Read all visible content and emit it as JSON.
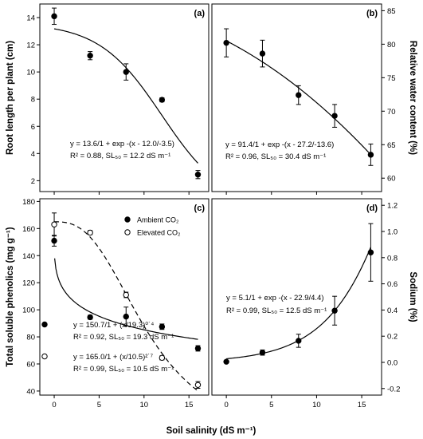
{
  "figure": {
    "x_axis_title": "Soil salinity (dS m⁻¹)",
    "x_ticks": [
      0,
      5,
      10,
      15
    ]
  },
  "chart_data": [
    {
      "id": "a",
      "type": "scatter",
      "panel_label": "(a)",
      "ylabel": "Root length per plant (cm)",
      "y_side": "left",
      "xlim": [
        -1.6,
        17.2
      ],
      "ylim": [
        1.2,
        15.0
      ],
      "y_ticks": [
        2,
        4,
        6,
        8,
        10,
        12,
        14
      ],
      "x": [
        0,
        4,
        8,
        12,
        16
      ],
      "y": [
        14.1,
        11.2,
        10.0,
        7.95,
        2.45
      ],
      "err": [
        0.6,
        0.3,
        0.6,
        0.15,
        0.3
      ],
      "fit": {
        "a": 13.6,
        "x0": 12.0,
        "b": -3.5,
        "from": 0,
        "to": 16,
        "dash": false
      },
      "equation_lines": [
        "y = 13.6/1 + exp -(x - 12.0/-3.5)",
        "R² = 0.88, SL₅₀ = 12.2 dS m⁻¹"
      ]
    },
    {
      "id": "b",
      "type": "scatter",
      "panel_label": "(b)",
      "ylabel": "Relative water content (%)",
      "y_side": "right",
      "xlim": [
        -1.6,
        17.2
      ],
      "ylim": [
        58.0,
        86.0
      ],
      "y_ticks": [
        60,
        65,
        70,
        75,
        80,
        85
      ],
      "x": [
        0,
        4,
        8,
        12,
        16
      ],
      "y": [
        80.2,
        78.6,
        72.4,
        69.3,
        63.5
      ],
      "err": [
        2.1,
        2.0,
        1.4,
        1.7,
        1.6
      ],
      "fit": {
        "a": 91.4,
        "x0": 27.2,
        "b": -13.6,
        "from": 0,
        "to": 16,
        "dash": false
      },
      "equation_lines": [
        "y = 91.4/1 + exp -(x - 27.2/-13.6)",
        "R² = 0.96, SL₅₀ = 30.4 dS m⁻¹"
      ]
    },
    {
      "id": "c",
      "type": "scatter",
      "panel_label": "(c)",
      "ylabel": "Total soluble phenolics (mg g⁻¹)",
      "y_side": "left",
      "xlim": [
        -1.6,
        17.2
      ],
      "ylim": [
        37.0,
        182.0
      ],
      "y_ticks": [
        40,
        60,
        80,
        100,
        120,
        140,
        160,
        180
      ],
      "legend": {
        "position": "top-right",
        "entries": [
          "Ambient CO₂",
          "Elevated CO₂"
        ]
      },
      "series": [
        {
          "name": "Ambient CO₂",
          "marker": "filled",
          "x": [
            0,
            4,
            8,
            12,
            16
          ],
          "y": [
            151.0,
            94.5,
            95.0,
            87.5,
            71.5
          ],
          "err": [
            4.0,
            1.5,
            7.0,
            2.0,
            2.0
          ],
          "fit": {
            "a": 150.7,
            "x0": 19.3,
            "b": 0.4,
            "from": 0.05,
            "to": 16,
            "dash": false
          },
          "equation_lines": [
            "y = 150.7/1 + (x/19.3)⁰˙⁴",
            "R² = 0.92, SL₅₀ = 19.3 dS m⁻¹"
          ]
        },
        {
          "name": "Elevated CO₂",
          "marker": "open",
          "x": [
            0,
            4,
            8,
            12,
            16
          ],
          "y": [
            163.0,
            157.0,
            111.0,
            64.5,
            44.5
          ],
          "err": [
            8.5,
            1.5,
            2.0,
            1.5,
            2.5
          ],
          "fit": {
            "a": 165.0,
            "x0": 10.5,
            "b": 2.7,
            "from": 0,
            "to": 16,
            "dash": true
          },
          "equation_lines": [
            "y = 165.0/1 + (x/10.5)²˙⁷",
            "R² = 0.99, SL₅₀ = 10.5 dS m⁻¹"
          ]
        }
      ]
    },
    {
      "id": "d",
      "type": "scatter",
      "panel_label": "(d)",
      "ylabel": "Sodium (%)",
      "y_side": "right",
      "xlim": [
        -1.6,
        17.2
      ],
      "ylim": [
        -0.25,
        1.25
      ],
      "y_ticks": [
        -0.2,
        0.0,
        0.2,
        0.4,
        0.6,
        0.8,
        1.0,
        1.2
      ],
      "x": [
        0,
        4,
        8,
        12,
        16
      ],
      "y": [
        0.005,
        0.075,
        0.165,
        0.395,
        0.84
      ],
      "err": [
        0.0,
        0.02,
        0.05,
        0.11,
        0.22
      ],
      "fit": {
        "a": 5.1,
        "x0": 22.9,
        "b": 4.4,
        "from": 0,
        "to": 16,
        "dash": false
      },
      "equation_lines": [
        "y = 5.1/1 + exp -(x - 22.9/4.4)",
        "R² = 0.99, SL₅₀ = 12.5 dS m⁻¹"
      ]
    }
  ]
}
